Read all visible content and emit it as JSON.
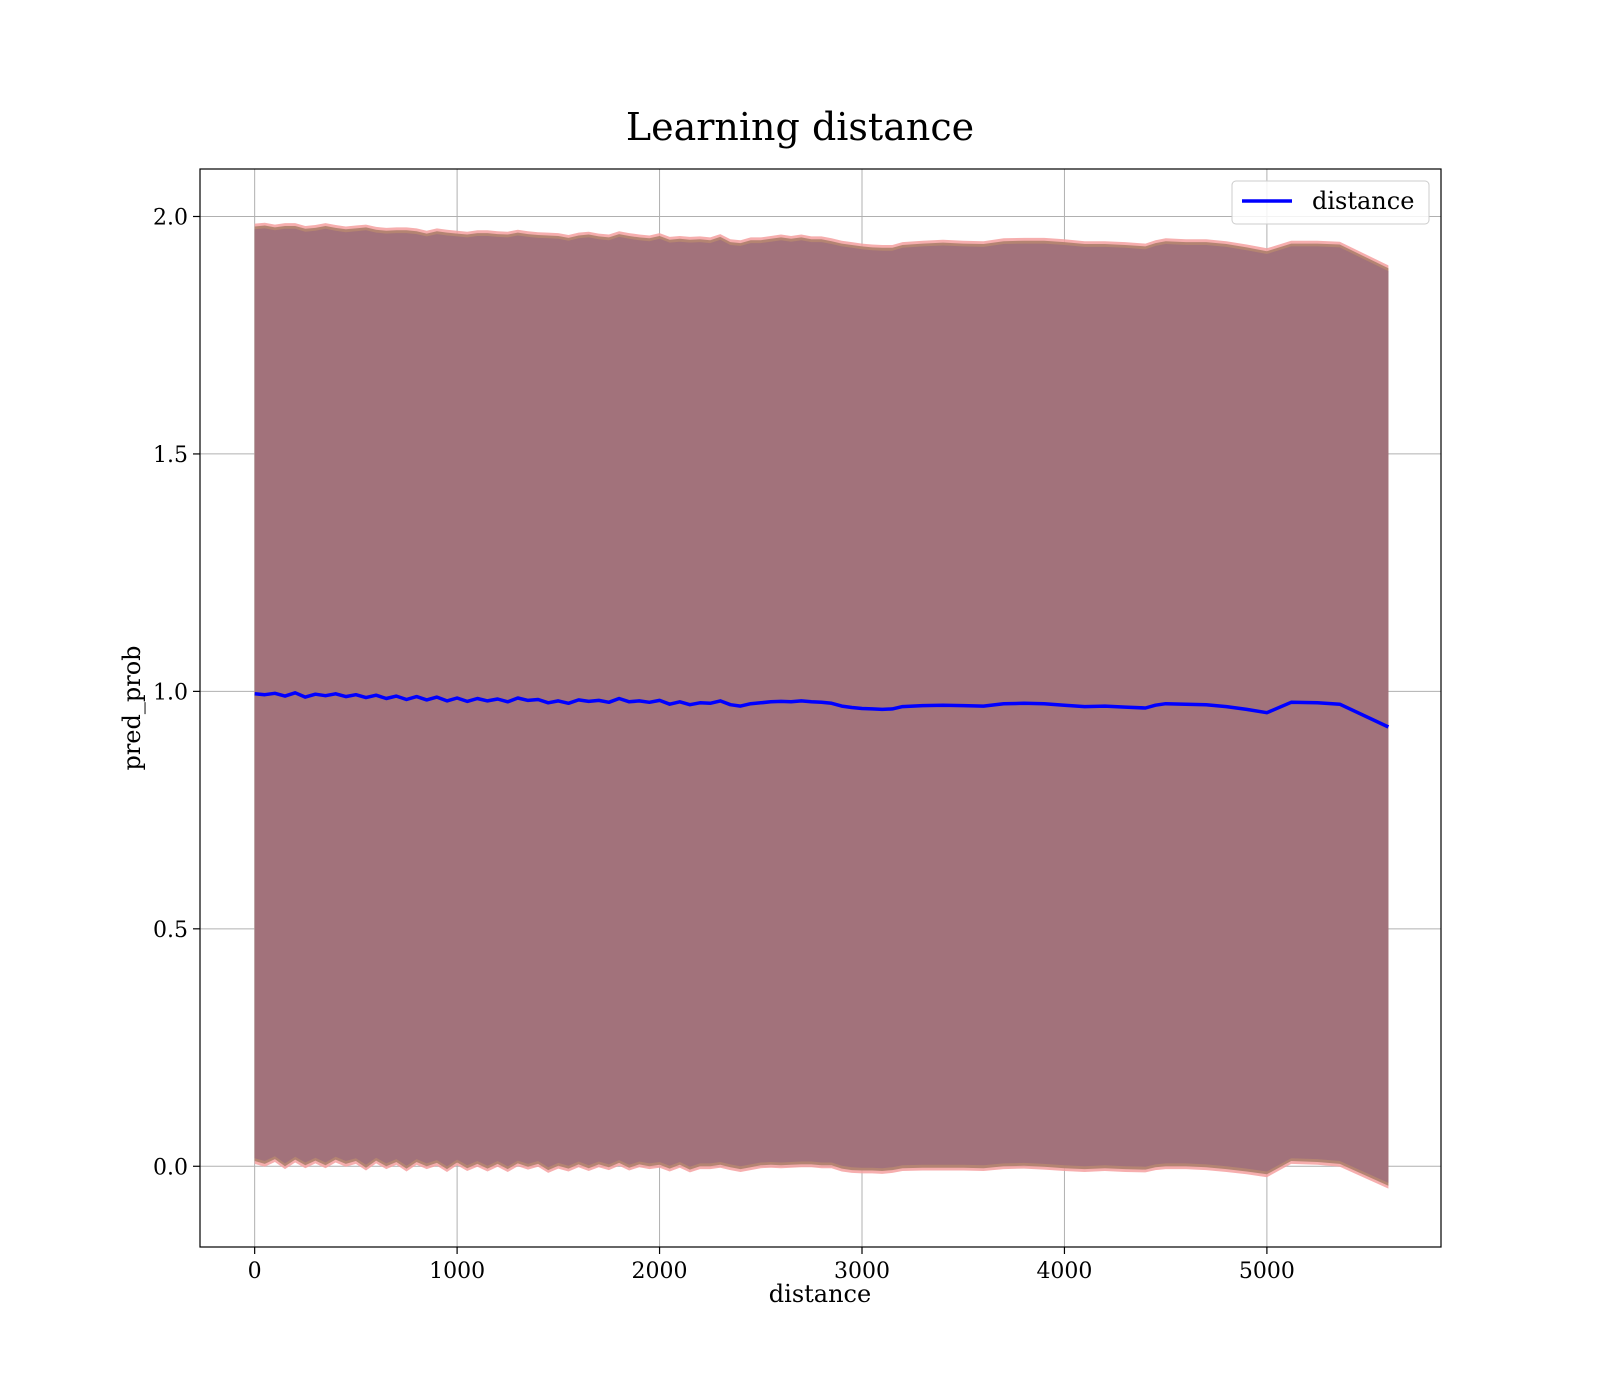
{
  "chart_data": {
    "type": "line",
    "title": "Learning distance",
    "xlabel": "distance",
    "ylabel": "pred_prob",
    "xlim": [
      -270,
      5860
    ],
    "ylim": [
      -0.17,
      2.1
    ],
    "xticks": [
      0,
      1000,
      2000,
      3000,
      4000,
      5000
    ],
    "yticks": [
      0.0,
      0.5,
      1.0,
      1.5,
      2.0
    ],
    "xtick_labels": [
      "0",
      "1000",
      "2000",
      "3000",
      "4000",
      "5000"
    ],
    "ytick_labels": [
      "0.0",
      "0.5",
      "1.0",
      "1.5",
      "2.0"
    ],
    "grid": true,
    "legend": {
      "position": "top-right",
      "entries": [
        "distance"
      ]
    },
    "colors": {
      "line": "#0000ff",
      "band_inner": "#a2727b",
      "band_mid": "#b0826f",
      "band_outer": "#f5a0a0"
    },
    "series": [
      {
        "name": "distance",
        "x": [
          0,
          50,
          100,
          150,
          200,
          250,
          300,
          350,
          400,
          450,
          500,
          550,
          600,
          650,
          700,
          750,
          800,
          850,
          900,
          950,
          1000,
          1050,
          1100,
          1150,
          1200,
          1250,
          1300,
          1350,
          1400,
          1450,
          1500,
          1550,
          1600,
          1650,
          1700,
          1750,
          1800,
          1850,
          1900,
          1950,
          2000,
          2050,
          2100,
          2150,
          2200,
          2250,
          2300,
          2350,
          2400,
          2450,
          2500,
          2550,
          2600,
          2650,
          2700,
          2750,
          2800,
          2850,
          2900,
          2950,
          3000,
          3050,
          3100,
          3150,
          3200,
          3300,
          3400,
          3500,
          3600,
          3700,
          3800,
          3900,
          4000,
          4100,
          4200,
          4300,
          4400,
          4450,
          4500,
          4600,
          4700,
          4800,
          4900,
          5000,
          5120,
          5250,
          5360,
          5600
        ],
        "y": [
          0.995,
          0.993,
          0.996,
          0.99,
          0.997,
          0.988,
          0.994,
          0.991,
          0.995,
          0.989,
          0.993,
          0.987,
          0.992,
          0.985,
          0.99,
          0.983,
          0.989,
          0.982,
          0.988,
          0.98,
          0.986,
          0.979,
          0.985,
          0.98,
          0.984,
          0.978,
          0.986,
          0.981,
          0.983,
          0.976,
          0.98,
          0.975,
          0.982,
          0.979,
          0.981,
          0.977,
          0.985,
          0.978,
          0.98,
          0.977,
          0.981,
          0.973,
          0.978,
          0.972,
          0.976,
          0.975,
          0.98,
          0.972,
          0.969,
          0.974,
          0.976,
          0.978,
          0.979,
          0.978,
          0.98,
          0.978,
          0.977,
          0.975,
          0.969,
          0.966,
          0.964,
          0.963,
          0.962,
          0.963,
          0.968,
          0.97,
          0.971,
          0.97,
          0.969,
          0.974,
          0.975,
          0.974,
          0.971,
          0.968,
          0.969,
          0.967,
          0.965,
          0.971,
          0.974,
          0.973,
          0.972,
          0.968,
          0.962,
          0.955,
          0.977,
          0.976,
          0.973,
          0.925
        ],
        "band": [
          0.978,
          0.982,
          0.975,
          0.984,
          0.977,
          0.98,
          0.976,
          0.983,
          0.975,
          0.978,
          0.976,
          0.984,
          0.974,
          0.979,
          0.975,
          0.982,
          0.974,
          0.976,
          0.975,
          0.98,
          0.972,
          0.977,
          0.974,
          0.979,
          0.973,
          0.978,
          0.974,
          0.976,
          0.972,
          0.978,
          0.973,
          0.974,
          0.972,
          0.977,
          0.971,
          0.973,
          0.972,
          0.975,
          0.97,
          0.971,
          0.972,
          0.972,
          0.969,
          0.973,
          0.97,
          0.969,
          0.971,
          0.968,
          0.969,
          0.97,
          0.968,
          0.969,
          0.971,
          0.969,
          0.97,
          0.968,
          0.969,
          0.967,
          0.968,
          0.968,
          0.967,
          0.966,
          0.966,
          0.965,
          0.966,
          0.967,
          0.968,
          0.967,
          0.967,
          0.968,
          0.968,
          0.969,
          0.969,
          0.968,
          0.967,
          0.967,
          0.966,
          0.967,
          0.968,
          0.967,
          0.968,
          0.968,
          0.967,
          0.966,
          0.96,
          0.961,
          0.962,
          0.96
        ]
      }
    ]
  }
}
